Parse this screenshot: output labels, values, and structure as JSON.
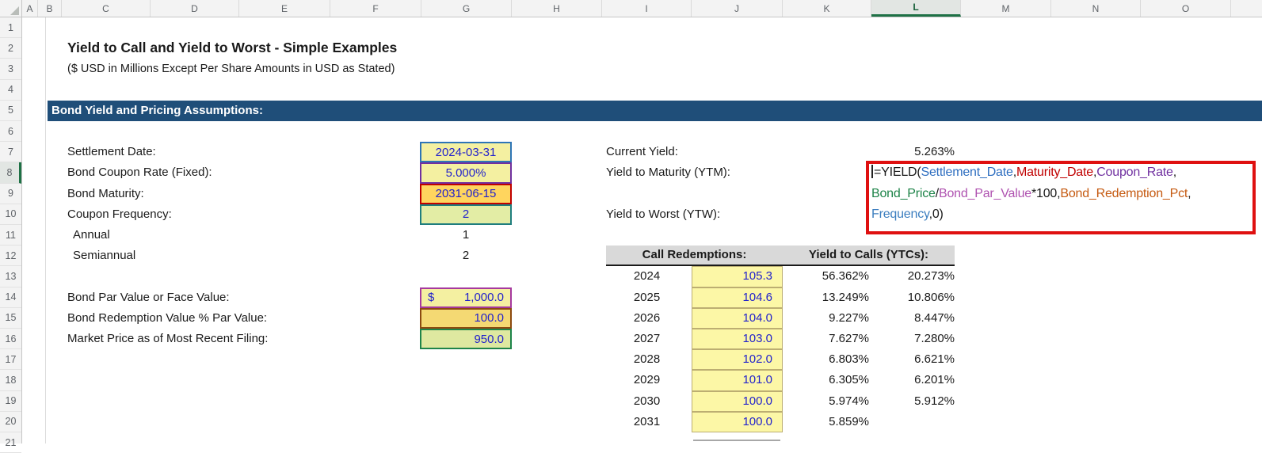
{
  "sheet": {
    "title": "Yield to Call and Yield to Worst - Simple Examples",
    "subtitle": "($ USD in Millions Except Per Share Amounts in USD as Stated)",
    "section_header": "Bond Yield and Pricing Assumptions:"
  },
  "grid": {
    "column_labels": [
      "A",
      "B",
      "C",
      "D",
      "E",
      "F",
      "G",
      "H",
      "I",
      "J",
      "K",
      "L",
      "M",
      "N",
      "O"
    ],
    "row_labels": [
      "1",
      "2",
      "3",
      "4",
      "5",
      "6",
      "7",
      "8",
      "9",
      "10",
      "11",
      "12",
      "13",
      "14",
      "15",
      "16",
      "17",
      "18",
      "19",
      "20",
      "21"
    ],
    "selected_column": "L",
    "selected_row": "8"
  },
  "assumptions": {
    "rows": [
      {
        "label": "Settlement Date:",
        "value": "2024-03-31",
        "box": "blue",
        "indent": false
      },
      {
        "label": "Bond Coupon Rate (Fixed):",
        "value": "5.000%",
        "box": "purple",
        "indent": false
      },
      {
        "label": "Bond Maturity:",
        "value": "2031-06-15",
        "box": "red",
        "indent": false
      },
      {
        "label": "Coupon Frequency:",
        "value": "2",
        "box": "teal",
        "indent": false
      },
      {
        "label": "Annual",
        "value": "1",
        "box": "none",
        "indent": true
      },
      {
        "label": "Semiannual",
        "value": "2",
        "box": "none",
        "indent": true
      }
    ]
  },
  "pricing": {
    "rows": [
      {
        "label": "Bond Par Value or Face Value:",
        "prefix": "$",
        "value": "1,000.0",
        "box": "magenta"
      },
      {
        "label": "Bond Redemption Value % Par Value:",
        "prefix": "",
        "value": "100.0",
        "box": "brown"
      },
      {
        "label": "Market Price as of Most Recent Filing:",
        "prefix": "",
        "value": "950.0",
        "box": "green"
      }
    ]
  },
  "yields": {
    "current_yield_label": "Current Yield:",
    "current_yield_value": "5.263%",
    "ytm_label": "Yield to Maturity (YTM):",
    "ytw_label": "Yield to Worst (YTW):"
  },
  "formula": {
    "lines": [
      {
        "cursor": true,
        "segments": [
          {
            "t": "=YIELD(",
            "c": "black"
          },
          {
            "t": "Settlement_Date",
            "c": "blue"
          },
          {
            "t": ",",
            "c": "black"
          },
          {
            "t": "Maturity_Date",
            "c": "red"
          },
          {
            "t": ",",
            "c": "black"
          },
          {
            "t": "Coupon_Rate",
            "c": "purple"
          },
          {
            "t": ",",
            "c": "black"
          }
        ]
      },
      {
        "cursor": false,
        "segments": [
          {
            "t": "Bond_Price",
            "c": "green"
          },
          {
            "t": "/",
            "c": "black"
          },
          {
            "t": "Bond_Par_Value",
            "c": "magenta"
          },
          {
            "t": "*100,",
            "c": "black"
          },
          {
            "t": "Bond_Redemption_Pct",
            "c": "orange"
          },
          {
            "t": ",",
            "c": "black"
          }
        ]
      },
      {
        "cursor": false,
        "segments": [
          {
            "t": "Frequency",
            "c": "lightblue"
          },
          {
            "t": ",0)",
            "c": "black"
          }
        ]
      }
    ]
  },
  "call_table": {
    "header_left": "Call Redemptions:",
    "header_right": "Yield to Calls (YTCs):",
    "rows": [
      {
        "year": "2024",
        "redemption": "105.3",
        "ytc_semi": "56.362%",
        "ytc_ann": "20.273%"
      },
      {
        "year": "2025",
        "redemption": "104.6",
        "ytc_semi": "13.249%",
        "ytc_ann": "10.806%"
      },
      {
        "year": "2026",
        "redemption": "104.0",
        "ytc_semi": "9.227%",
        "ytc_ann": "8.447%"
      },
      {
        "year": "2027",
        "redemption": "103.0",
        "ytc_semi": "7.627%",
        "ytc_ann": "7.280%"
      },
      {
        "year": "2028",
        "redemption": "102.0",
        "ytc_semi": "6.803%",
        "ytc_ann": "6.621%"
      },
      {
        "year": "2029",
        "redemption": "101.0",
        "ytc_semi": "6.305%",
        "ytc_ann": "6.201%"
      },
      {
        "year": "2030",
        "redemption": "100.0",
        "ytc_semi": "5.974%",
        "ytc_ann": "5.912%"
      },
      {
        "year": "2031",
        "redemption": "100.0",
        "ytc_semi": "5.859%",
        "ytc_ann": ""
      }
    ]
  },
  "colors": {
    "section_bar": "#1F4E79",
    "input_text": "#2222CC",
    "redbox_border": "#DF1010",
    "table_header_bg": "#D9D9D9",
    "table_cell": {
      "bg": "#FCF7A6",
      "border": "#BCAE72"
    },
    "boxes": {
      "blue": {
        "bg": "#F4F0A1",
        "border": "#2E75B6"
      },
      "purple": {
        "bg": "#F4F0A1",
        "border": "#7030A0"
      },
      "red": {
        "bg": "#FFD55E",
        "border": "#C00000"
      },
      "teal": {
        "bg": "#E3EDA5",
        "border": "#1F7E7E"
      },
      "magenta": {
        "bg": "#F4F0A1",
        "border": "#A6399E"
      },
      "brown": {
        "bg": "#F4D973",
        "border": "#8C4A10"
      },
      "green": {
        "bg": "#DEE8A0",
        "border": "#1E8449"
      }
    },
    "formula": {
      "black": "#1A1A1A",
      "blue": "#2E6EC0",
      "red": "#C00000",
      "purple": "#7030A0",
      "green": "#1E8449",
      "magenta": "#AF52B0",
      "orange": "#C55A11",
      "lightblue": "#3C7EBF"
    }
  }
}
